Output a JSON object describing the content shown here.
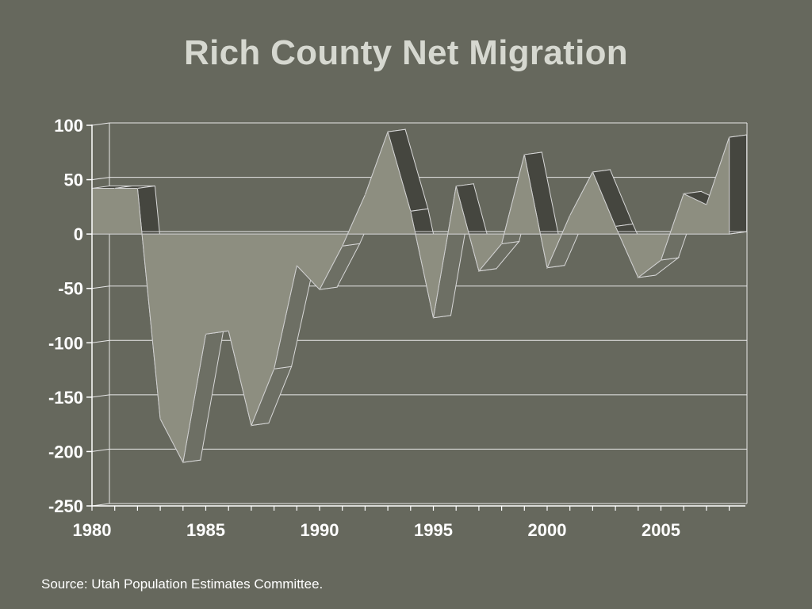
{
  "slide": {
    "title": "Rich County Net Migration",
    "source": "Source: Utah Population Estimates Committee."
  },
  "colors": {
    "background": "#66685d",
    "area_front": "#8d8e80",
    "ribbon_top": "#6d6f64",
    "ribbon_dark": "#45463f",
    "gridline": "#e8e8e8",
    "title_text": "#d6d8d0",
    "axis_text": "#ffffff"
  },
  "chart_data": {
    "type": "area",
    "style": "3d-ribbon",
    "title": "Rich County Net Migration",
    "xlabel": "",
    "ylabel": "",
    "x": [
      1980,
      1981,
      1982,
      1983,
      1984,
      1985,
      1986,
      1987,
      1988,
      1989,
      1990,
      1991,
      1992,
      1993,
      1994,
      1995,
      1996,
      1997,
      1998,
      1999,
      2000,
      2001,
      2002,
      2003,
      2004,
      2005,
      2006,
      2007,
      2008
    ],
    "values": [
      42,
      42,
      42,
      -170,
      -210,
      -92,
      -89,
      -176,
      -124,
      -29,
      -51,
      -11,
      36,
      94,
      21,
      -77,
      44,
      -34,
      -9,
      73,
      -31,
      17,
      57,
      7,
      -40,
      -24,
      37,
      27,
      89
    ],
    "ylim": [
      -250,
      100
    ],
    "xlim": [
      1980,
      2008.5
    ],
    "y_ticks": [
      "100",
      "50",
      "0",
      "-50",
      "-100",
      "-150",
      "-200",
      "-250"
    ],
    "y_tick_values": [
      100,
      50,
      0,
      -50,
      -100,
      -150,
      -200,
      -250
    ],
    "x_tick_labels": [
      "1980",
      "1985",
      "1990",
      "1995",
      "2000",
      "2005"
    ],
    "x_tick_values": [
      1980,
      1985,
      1990,
      1995,
      2000,
      2005
    ],
    "grid": true,
    "legend": "none"
  }
}
